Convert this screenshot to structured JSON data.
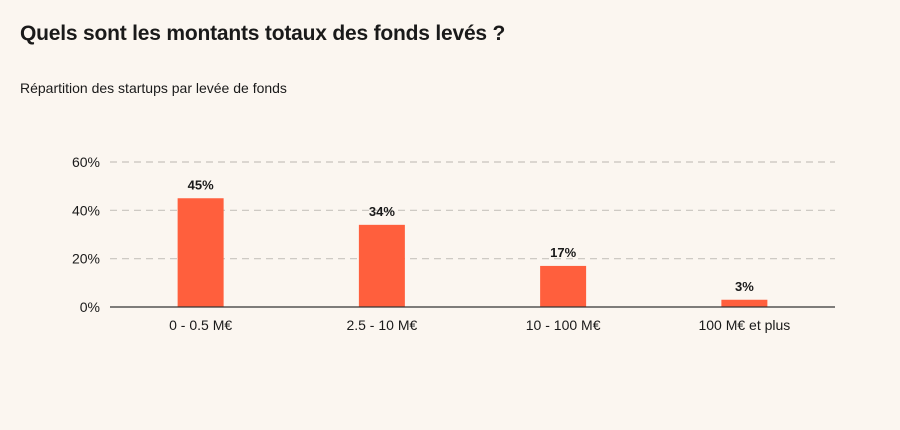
{
  "title": "Quels sont les montants totaux des fonds levés ?",
  "subtitle": "Répartition des startups par levée de fonds",
  "colors": {
    "bar": "#ff5f3d",
    "grid": "#c8c3bd",
    "axis": "#333333",
    "background": "#fbf6f0"
  },
  "chart_data": {
    "type": "bar",
    "categories": [
      "0 - 0.5 M€",
      "2.5 - 10 M€",
      "10 - 100 M€",
      "100 M€ et plus"
    ],
    "values": [
      45,
      34,
      17,
      3
    ],
    "value_labels": [
      "45%",
      "34%",
      "17%",
      "3%"
    ],
    "ylim": [
      0,
      60
    ],
    "yticks": [
      0,
      20,
      40,
      60
    ],
    "ytick_labels": [
      "0%",
      "20%",
      "40%",
      "60%"
    ],
    "grid": "horizontal dashed",
    "legend": "none"
  }
}
